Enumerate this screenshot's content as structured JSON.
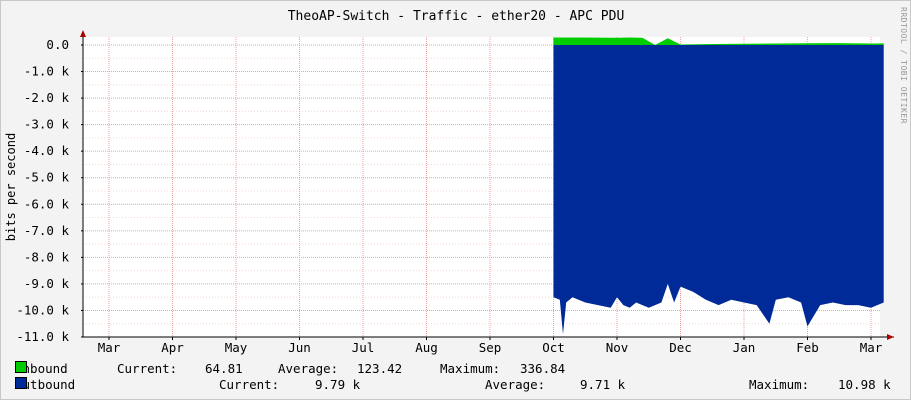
{
  "chart_data": {
    "type": "area",
    "title": "TheoAP-Switch - Traffic - ether20 - APC PDU",
    "ylabel": "bits per second",
    "xlabel": "",
    "ylim": [
      -11000,
      0
    ],
    "y_ticks": [
      "0.0",
      "-1.0 k",
      "-2.0 k",
      "-3.0 k",
      "-4.0 k",
      "-5.0 k",
      "-6.0 k",
      "-7.0 k",
      "-8.0 k",
      "-9.0 k",
      "-10.0 k",
      "-11.0 k"
    ],
    "y_tick_values": [
      0,
      -1000,
      -2000,
      -3000,
      -4000,
      -5000,
      -6000,
      -7000,
      -8000,
      -9000,
      -10000,
      -11000
    ],
    "x_ticks": [
      "Mar",
      "Apr",
      "May",
      "Jun",
      "Jul",
      "Aug",
      "Sep",
      "Oct",
      "Nov",
      "Dec",
      "Jan",
      "Feb",
      "Mar"
    ],
    "grid": true,
    "series": [
      {
        "name": "Inbound",
        "color": "#00cc00",
        "x": [
          7.0,
          7.5,
          8.0,
          8.2,
          8.4,
          8.6,
          8.8,
          9.0,
          9.5,
          10.0,
          10.5,
          11.0,
          11.5,
          12.0,
          12.2
        ],
        "values": [
          310,
          310,
          300,
          310,
          300,
          0,
          280,
          20,
          40,
          50,
          60,
          70,
          80,
          60,
          65
        ]
      },
      {
        "name": "Outbound",
        "color": "#002a97",
        "x": [
          7.0,
          7.1,
          7.15,
          7.2,
          7.3,
          7.5,
          7.7,
          7.9,
          8.0,
          8.1,
          8.2,
          8.3,
          8.5,
          8.7,
          8.8,
          8.9,
          9.0,
          9.2,
          9.4,
          9.6,
          9.8,
          10.0,
          10.2,
          10.4,
          10.5,
          10.7,
          10.9,
          11.0,
          11.2,
          11.4,
          11.6,
          11.8,
          12.0,
          12.2
        ],
        "values": [
          -9500,
          -9600,
          -10900,
          -9700,
          -9500,
          -9700,
          -9800,
          -9900,
          -9500,
          -9800,
          -9900,
          -9700,
          -9900,
          -9700,
          -9000,
          -9700,
          -9100,
          -9300,
          -9600,
          -9800,
          -9600,
          -9700,
          -9800,
          -10500,
          -9600,
          -9500,
          -9700,
          -10600,
          -9800,
          -9700,
          -9800,
          -9800,
          -9900,
          -9700
        ]
      }
    ]
  },
  "legend": {
    "inbound": {
      "name": "Inbound",
      "current_label": "Current:",
      "current": "64.81",
      "average_label": "Average:",
      "average": "123.42",
      "maximum_label": "Maximum:",
      "maximum": "336.84"
    },
    "outbound": {
      "name": "Outbound",
      "current_label": "Current:",
      "current": "9.79 k",
      "average_label": "Average:",
      "average": "9.71 k",
      "maximum_label": "Maximum:",
      "maximum": "10.98 k"
    }
  },
  "watermark": "RRDTOOL / TOBI OETIKER"
}
